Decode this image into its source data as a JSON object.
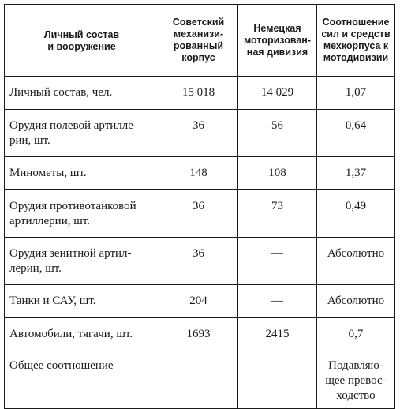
{
  "table": {
    "headers": {
      "col1": "Личный состав\nи вооружение",
      "col2": "Советский\nмеханизи-\nрованный\nкорпус",
      "col3": "Немецкая\nмоторизован-\nная дивизия",
      "col4": "Соотношение\nсил и средств\nмехкорпуса к\nмотодивизии"
    },
    "rows": [
      {
        "label": "Личный состав, чел.",
        "soviet": "15 018",
        "german": "14 029",
        "ratio": "1,07"
      },
      {
        "label": "Орудия полевой артилле-\nрии, шт.",
        "soviet": "36",
        "german": "56",
        "ratio": "0,64"
      },
      {
        "label": "Минометы, шт.",
        "soviet": "148",
        "german": "108",
        "ratio": "1,37"
      },
      {
        "label": "Орудия противотанковой\nартиллерии, шт.",
        "soviet": "36",
        "german": "73",
        "ratio": "0,49"
      },
      {
        "label": "Орудия зенитной артил-\nлерии, шт.",
        "soviet": "36",
        "german": "—",
        "ratio": "Абсолютно"
      },
      {
        "label": "Танки и САУ, шт.",
        "soviet": "204",
        "german": "—",
        "ratio": "Абсолютно"
      },
      {
        "label": "Автомобили, тягачи, шт.",
        "soviet": "1693",
        "german": "2415",
        "ratio": "0,7"
      },
      {
        "label": "Общее соотношение",
        "soviet": "",
        "german": "",
        "ratio": "Подавляю-\nщее превос-\nходство"
      }
    ]
  }
}
